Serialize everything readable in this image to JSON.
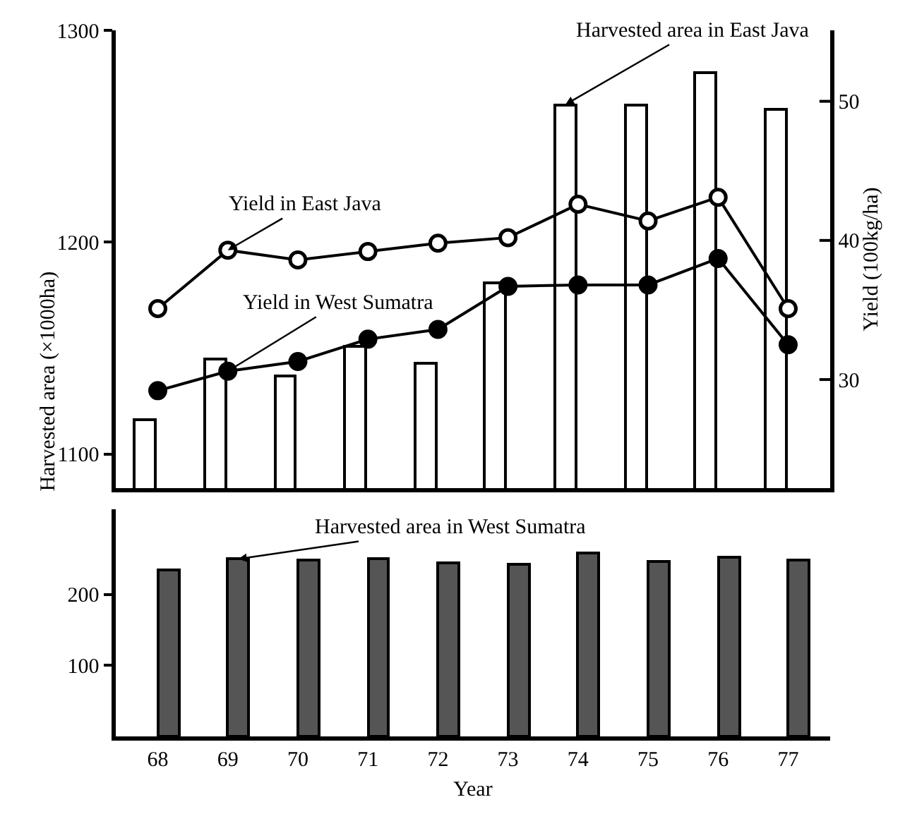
{
  "chart_data": [
    {
      "type": "bar",
      "ylabel": "Harvested area (×1000ha)",
      "y2label": "Yield (100kg/ha)",
      "categories": [
        "68",
        "69",
        "70",
        "71",
        "72",
        "73",
        "74",
        "75",
        "76",
        "77"
      ],
      "series": [
        {
          "name": "Harvested area in East Java",
          "color": "#ffffff",
          "values": [
            1116,
            1145,
            1137,
            1151,
            1143,
            1181,
            1265,
            1265,
            1280,
            1263
          ]
        },
        {
          "name": "Yield in East Java",
          "type": "line",
          "axis": "y2",
          "marker": "circle",
          "color": "#000000",
          "values": [
            35.1,
            39.3,
            38.6,
            39.2,
            39.8,
            40.2,
            42.6,
            41.4,
            43.1,
            35.1
          ]
        },
        {
          "name": "Yield in West Sumatra",
          "type": "line",
          "axis": "y2",
          "marker": "circle",
          "color": "#000000",
          "values": [
            29.2,
            30.6,
            31.3,
            32.9,
            33.6,
            36.7,
            36.8,
            36.8,
            38.7,
            32.5
          ]
        }
      ],
      "ylim": [
        1084,
        1300
      ],
      "yticks": [
        1100,
        1200,
        1300
      ],
      "y2lim": [
        22.2,
        55.1
      ],
      "y2ticks": [
        30,
        40,
        50
      ],
      "tick_labels": "y",
      "legend": false
    },
    {
      "type": "bar",
      "xlabel": "Year",
      "categories": [
        "68",
        "69",
        "70",
        "71",
        "72",
        "73",
        "74",
        "75",
        "76",
        "77"
      ],
      "series": [
        {
          "name": "Harvested area in West Sumatra",
          "color": "#555555",
          "values": [
            234,
            250,
            248,
            250,
            245,
            243,
            258,
            247,
            252,
            248
          ]
        }
      ],
      "ylim": [
        0,
        320
      ],
      "yticks": [
        100,
        200
      ],
      "legend": false
    }
  ]
}
